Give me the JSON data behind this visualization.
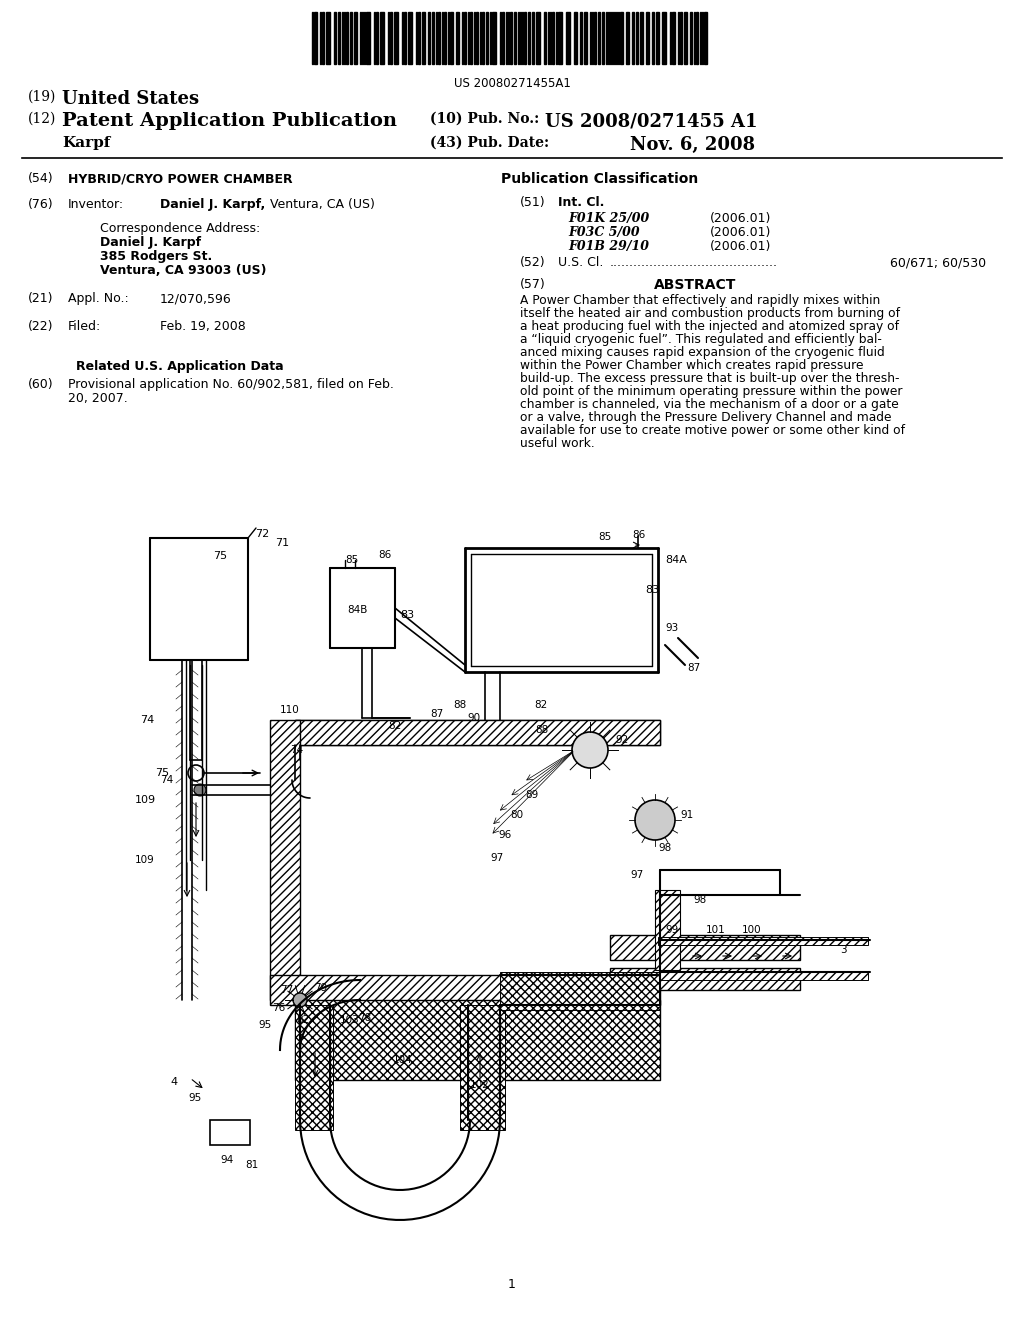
{
  "background_color": "#ffffff",
  "barcode_text": "US 20080271455A1",
  "title19": "(19) United States",
  "title12": "(12) Patent Application Publication",
  "pub_no_label": "(10) Pub. No.:",
  "pub_no": "US 2008/0271455 A1",
  "karpf_label": "Karpf",
  "pub_date_label": "(43) Pub. Date:",
  "pub_date": "Nov. 6, 2008",
  "field54_label": "(54)",
  "field54": "HYBRID/CRYO POWER CHAMBER",
  "pub_class_title": "Publication Classification",
  "field51_label": "(51)",
  "int_cl_label": "Int. Cl.",
  "class1": "F01K 25/00",
  "class1_year": "(2006.01)",
  "class2": "F03C 5/00",
  "class2_year": "(2006.01)",
  "class3": "F01B 29/10",
  "class3_year": "(2006.01)",
  "field52_label": "(52)",
  "us_cl_label": "U.S. Cl.",
  "us_cl_dots": "........................................................",
  "us_cl_value": "60/671; 60/530",
  "field57_label": "(57)",
  "abstract_title": "ABSTRACT",
  "abstract_text": "A Power Chamber that effectively and rapidly mixes within itself the heated air and combustion products from burning of a heat producing fuel with the injected and atomized spray of a “liquid cryogenic fuel”. This regulated and efficiently bal-anced mixing causes rapid expansion of the cryogenic fluid within the Power Chamber which creates rapid pressure build-up. The excess pressure that is built-up over the thresh-old point of the minimum operating pressure within the power chamber is channeled, via the mechanism of a door or a gate or a valve, through the Pressure Delivery Channel and made available for use to create motive power or some other kind of useful work.",
  "field76_label": "(76)",
  "inventor_label": "Inventor:",
  "inventor_name": "Daniel J. Karpf,",
  "inventor_city": "Ventura, CA (US)",
  "corr_address": "Correspondence Address:",
  "corr_name": "Daniel J. Karpf",
  "corr_street": "385 Rodgers St.",
  "corr_city": "Ventura, CA 93003 (US)",
  "field21_label": "(21)",
  "appl_no_label": "Appl. No.:",
  "appl_no": "12/070,596",
  "field22_label": "(22)",
  "filed_label": "Filed:",
  "filed_date": "Feb. 19, 2008",
  "related_data_title": "Related U.S. Application Data",
  "field60_label": "(60)",
  "provisional_text": "Provisional application No. 60/902,581, filed on Feb. 20, 2007."
}
